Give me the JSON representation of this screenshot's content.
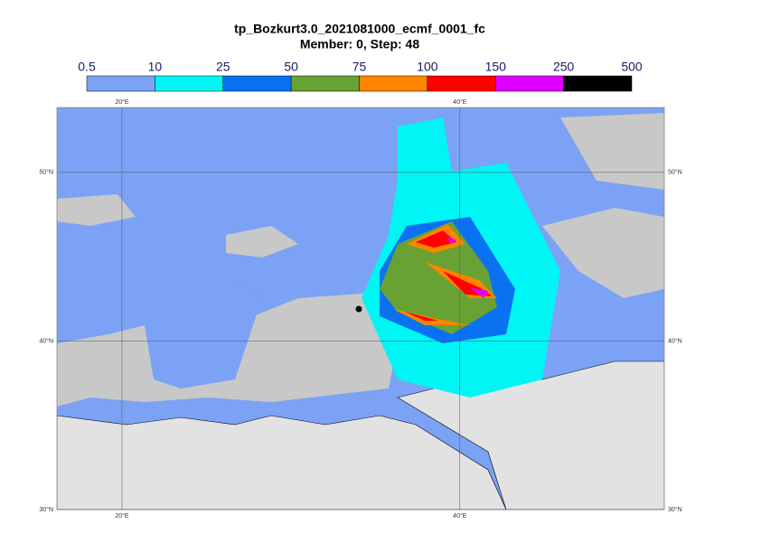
{
  "header": {
    "title": "tp_Bozkurt3.0_2021081000_ecmf_0001_fc",
    "subtitle": "Member: 0, Step: 48"
  },
  "colorbar": {
    "levels": [
      0.5,
      10,
      25,
      50,
      75,
      100,
      150,
      250,
      500
    ],
    "colors": [
      "#7ba2f5",
      "#00f5f5",
      "#0a72f0",
      "#68a234",
      "#ff8400",
      "#ff0000",
      "#e000ff",
      "#000000"
    ]
  },
  "map": {
    "lonlim": [
      16.15,
      52.1
    ],
    "latlim": [
      30,
      53.85
    ],
    "lon_ticks": [
      {
        "value": 20,
        "label": "20°E"
      },
      {
        "value": 40,
        "label": "40°E"
      }
    ],
    "lat_ticks": [
      {
        "value": 30,
        "label": "30°N"
      },
      {
        "value": 40,
        "label": "40°N"
      },
      {
        "value": 50,
        "label": "50°N"
      }
    ]
  }
}
